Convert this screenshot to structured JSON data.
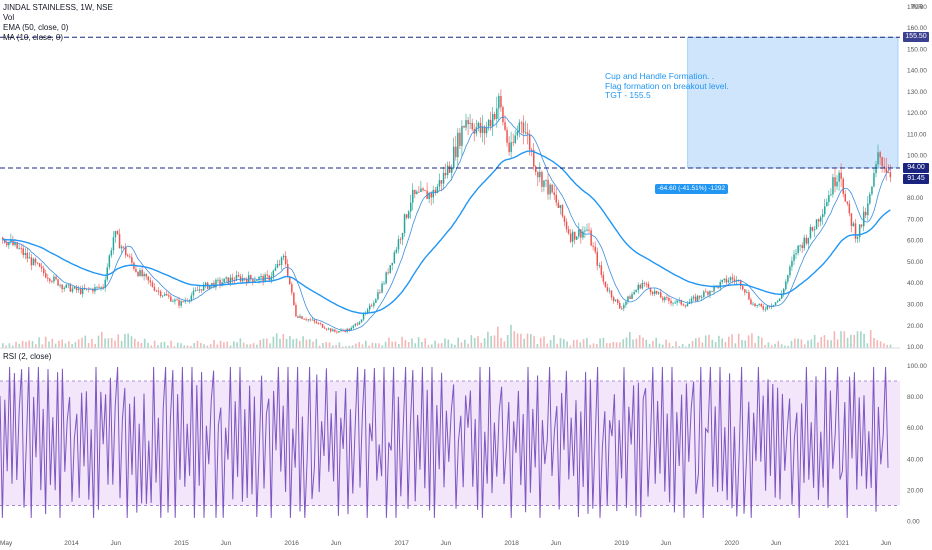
{
  "header": {
    "symbol_line": "JINDAL STAINLESS, 1W, NSE",
    "vol_label": "Vol",
    "ema_label": "EMA (50, close, 0)",
    "ma_label": "MA (10, close, 0)",
    "rsi_label": "RSI (2, close)",
    "currency": "INR"
  },
  "annotation": {
    "lines": [
      "Cup and Handle Formation. .",
      "Flag formation on breakout level.",
      "TGT - 155.5"
    ],
    "measure_label": "-64.60 (-41.51%) -1292"
  },
  "price_tags": {
    "target": "155.50",
    "level": "94.00",
    "last": "91.45"
  },
  "colors": {
    "up": "#26a69a",
    "down": "#ef5350",
    "ema": "#2196f3",
    "ma": "#3c8ee0",
    "level_line": "#1a237e",
    "rsi_line": "#7e57c2",
    "rsi_band": "#f3e5fa",
    "target_box": "#cfe5fb",
    "target_tag": "#3b3f8f",
    "last_tag": "#1a237e"
  },
  "chart_data": {
    "type": "candlestick",
    "price_axis": {
      "ticks": [
        "10.00",
        "20.00",
        "30.00",
        "40.00",
        "50.00",
        "60.00",
        "70.00",
        "80.00",
        "90.00",
        "100.00",
        "110.00",
        "120.00",
        "130.00",
        "140.00",
        "150.00",
        "160.00",
        "170.00"
      ],
      "values": [
        10,
        20,
        30,
        40,
        50,
        60,
        70,
        80,
        90,
        100,
        110,
        120,
        130,
        140,
        150,
        160,
        170
      ]
    },
    "rsi_axis": {
      "ticks": [
        "0.00",
        "20.00",
        "40.00",
        "60.00",
        "80.00",
        "100.00"
      ],
      "values": [
        0,
        20,
        40,
        60,
        80,
        100
      ],
      "overbought": 90,
      "oversold": 10
    },
    "time_axis": {
      "labels": [
        "May",
        "2014",
        "Jun",
        "2015",
        "Jun",
        "2016",
        "Jun",
        "2017",
        "Jun",
        "2018",
        "Jun",
        "2019",
        "Jun",
        "2020",
        "Jun",
        "2021",
        "Jun"
      ],
      "t": [
        2013.37,
        2014.0,
        2014.42,
        2015.0,
        2015.42,
        2016.0,
        2016.42,
        2017.0,
        2017.42,
        2018.0,
        2018.42,
        2019.0,
        2019.42,
        2020.0,
        2020.42,
        2021.0,
        2021.42
      ]
    },
    "levels": {
      "target": 155.5,
      "breakout": 94.0,
      "last_close": 91.45
    },
    "price_keypoints": {
      "t": [
        2013.37,
        2013.55,
        2013.75,
        2013.95,
        2014.1,
        2014.3,
        2014.4,
        2014.6,
        2014.8,
        2015.0,
        2015.2,
        2015.5,
        2015.8,
        2015.95,
        2016.05,
        2016.2,
        2016.4,
        2016.55,
        2016.7,
        2016.85,
        2017.0,
        2017.1,
        2017.3,
        2017.45,
        2017.6,
        2017.75,
        2017.9,
        2018.0,
        2018.1,
        2018.25,
        2018.4,
        2018.55,
        2018.7,
        2018.85,
        2019.0,
        2019.2,
        2019.4,
        2019.6,
        2019.8,
        2020.0,
        2020.1,
        2020.2,
        2020.3,
        2020.45,
        2020.6,
        2020.75,
        2020.9,
        2021.0,
        2021.05,
        2021.15,
        2021.25,
        2021.35,
        2021.45
      ],
      "v": [
        62,
        55,
        45,
        38,
        36,
        38,
        63,
        46,
        36,
        30,
        38,
        42,
        42,
        52,
        25,
        22,
        17,
        18,
        26,
        40,
        62,
        80,
        82,
        95,
        118,
        110,
        125,
        100,
        118,
        92,
        80,
        62,
        65,
        40,
        28,
        40,
        32,
        30,
        36,
        42,
        40,
        30,
        28,
        32,
        55,
        65,
        82,
        95,
        76,
        62,
        75,
        100,
        92
      ]
    },
    "volume_keypoints": {
      "t": [
        2013.4,
        2014.4,
        2015.0,
        2015.9,
        2016.5,
        2017.0,
        2017.5,
        2018.0,
        2018.5,
        2019.0,
        2019.6,
        2020.0,
        2020.5,
        2020.9,
        2021.05,
        2021.3,
        2021.45
      ],
      "v": [
        0.25,
        0.55,
        0.2,
        0.5,
        0.15,
        0.4,
        0.3,
        0.85,
        0.3,
        0.6,
        0.2,
        0.7,
        0.25,
        0.5,
        0.65,
        0.55,
        0.25
      ]
    },
    "rsi_pattern": [
      95,
      10,
      70,
      30,
      100,
      5,
      80,
      20,
      60,
      96,
      15,
      50,
      85,
      5,
      75,
      40,
      98,
      20,
      65,
      10
    ]
  }
}
